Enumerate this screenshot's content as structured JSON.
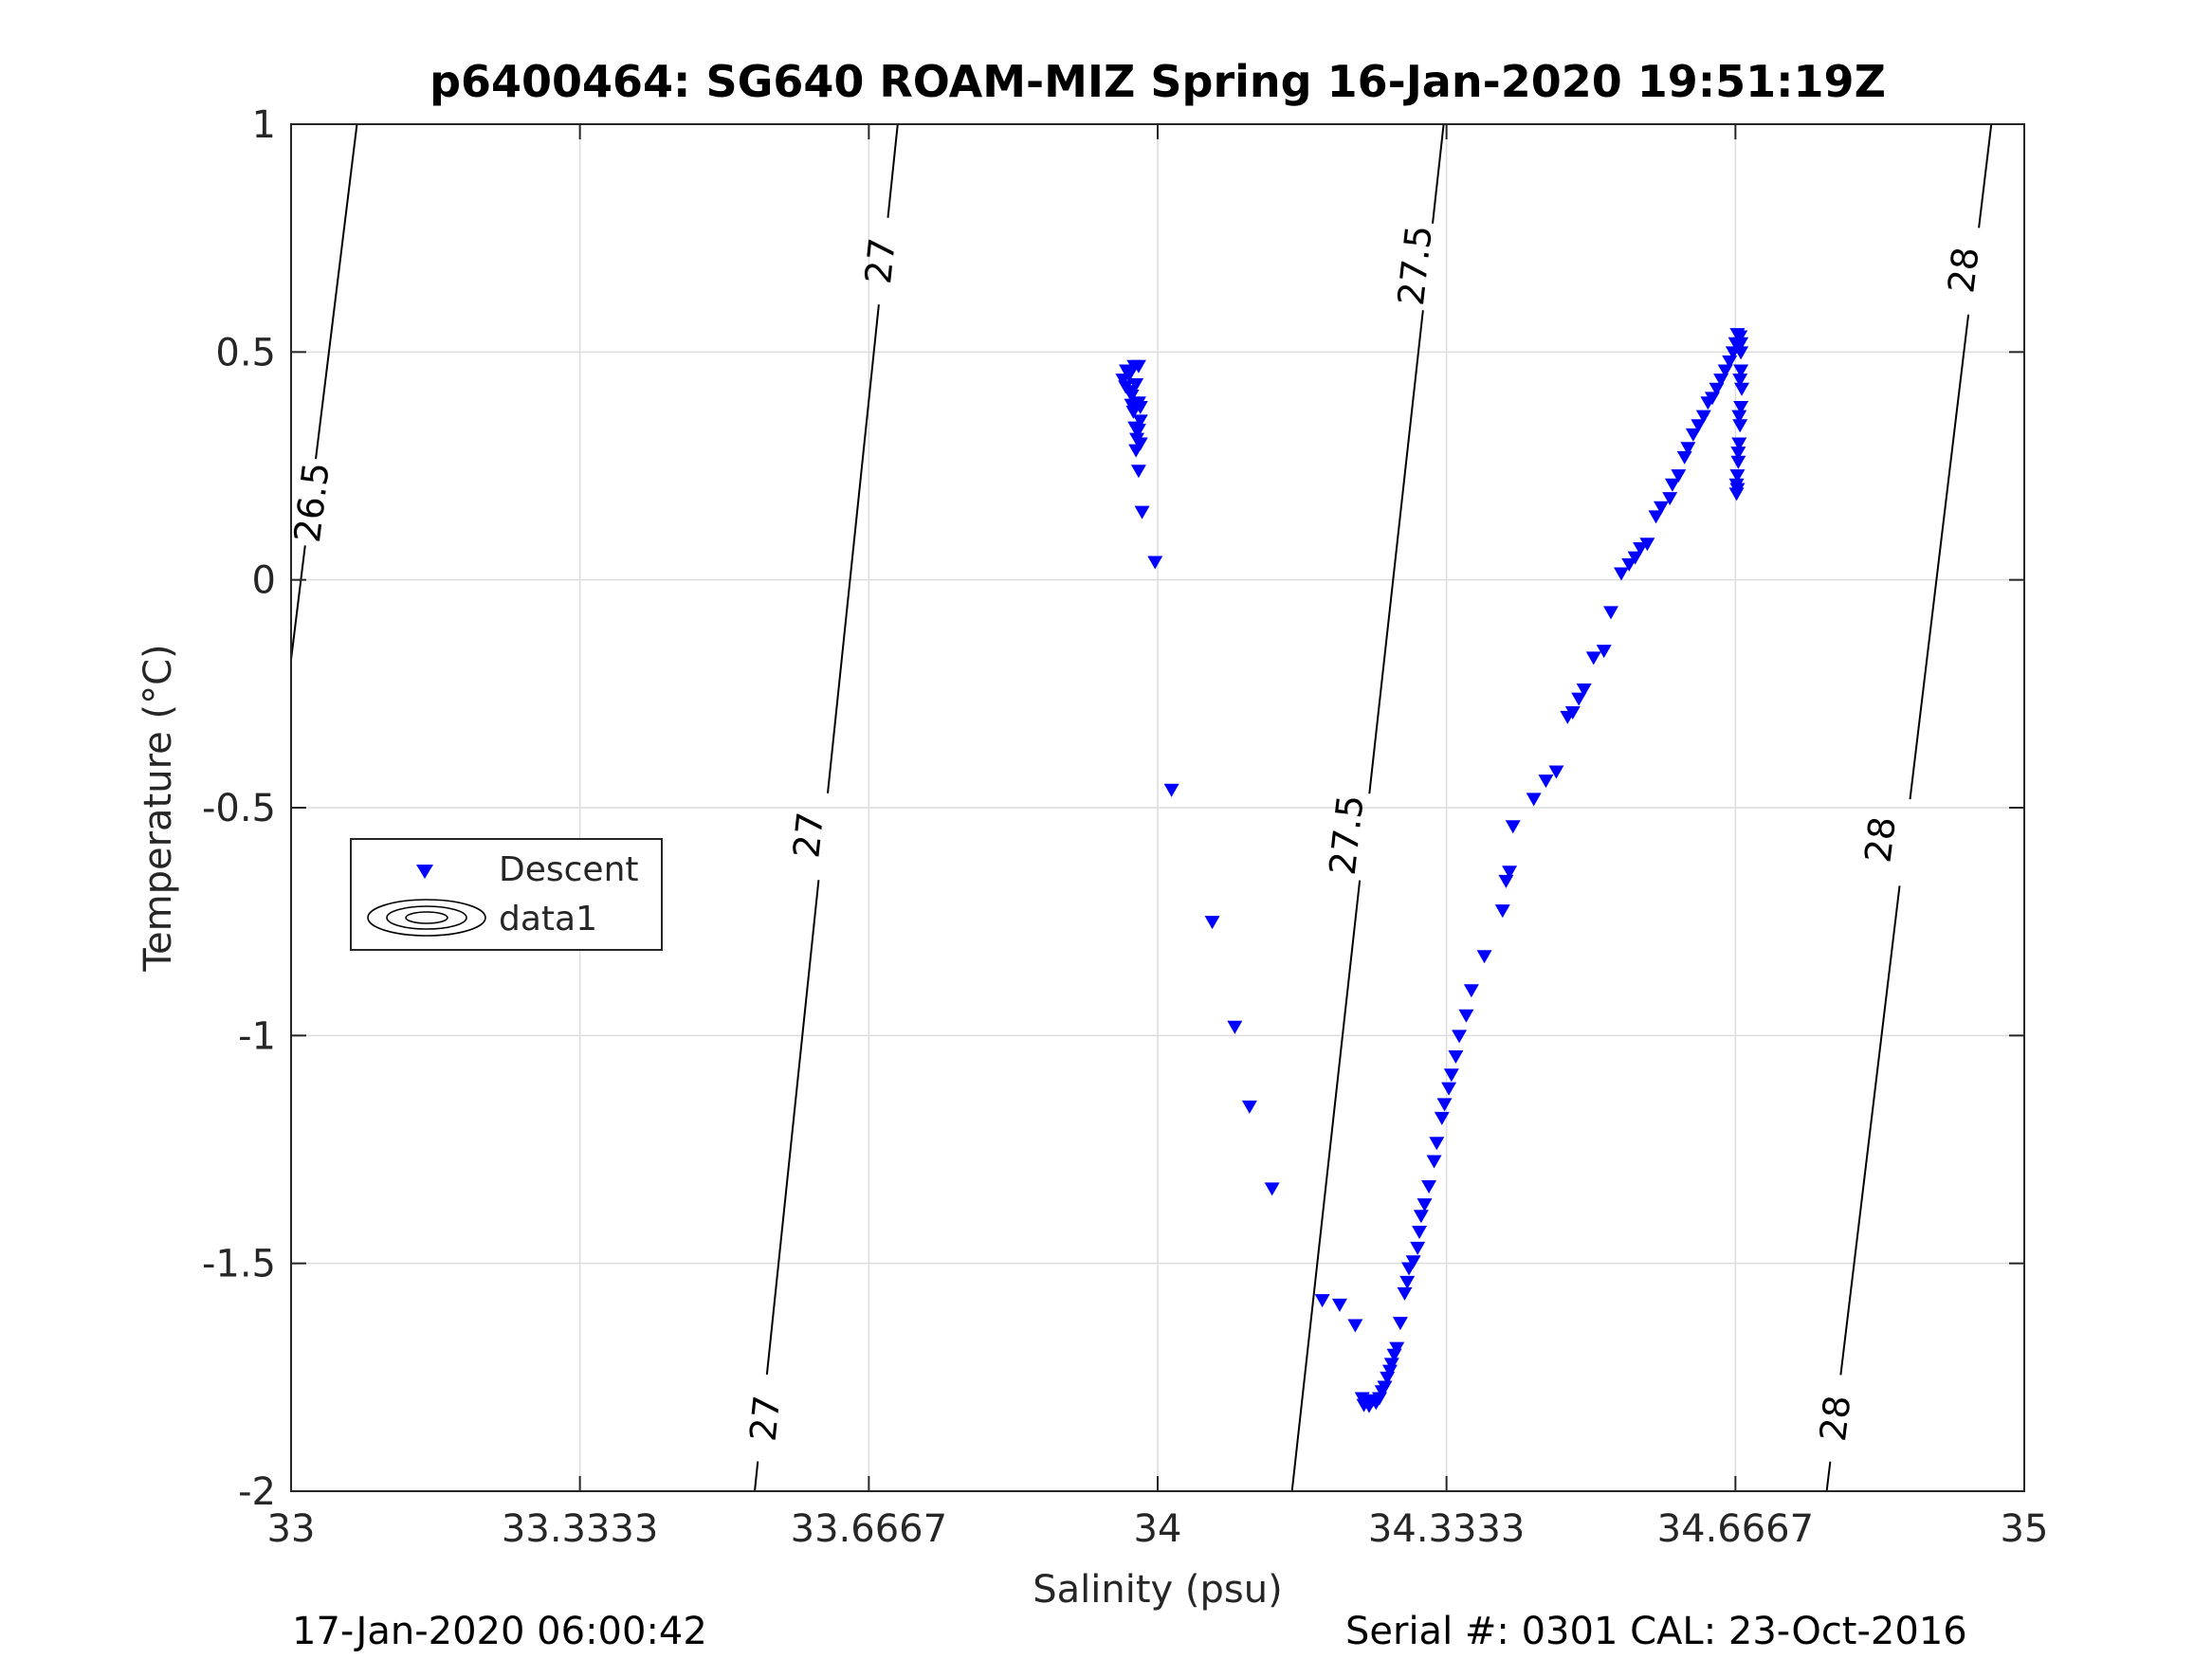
{
  "chart_data": {
    "type": "scatter",
    "title": "p6400464: SG640 ROAM-MIZ Spring 16-Jan-2020 19:51:19Z",
    "xlabel": "Salinity (psu)",
    "ylabel": "Temperature (°C)",
    "xlim": [
      33,
      35
    ],
    "ylim": [
      -2,
      1
    ],
    "x_ticks": [
      "33",
      "33.3333",
      "33.6667",
      "34",
      "34.3333",
      "34.6667",
      "35"
    ],
    "x_tick_values": [
      33,
      33.3333,
      33.6667,
      34,
      34.3333,
      34.6667,
      35
    ],
    "y_ticks": [
      "-2",
      "-1.5",
      "-1",
      "-0.5",
      "0",
      "0.5",
      "1"
    ],
    "y_tick_values": [
      -2,
      -1.5,
      -1,
      -0.5,
      0,
      0.5,
      1
    ],
    "grid": true,
    "legend_position": "middle-left",
    "legend": [
      {
        "name": "Descent",
        "marker": "down-triangle",
        "color": "#0000ff"
      },
      {
        "name": "data1",
        "marker": "contour",
        "color": "#000000"
      }
    ],
    "density_contours": [
      {
        "label": "26.5",
        "points": [
          [
            33.076,
            1.0
          ],
          [
            33.0,
            -0.175
          ]
        ],
        "label_at": [
          33.024,
          0.17
        ]
      },
      {
        "label": "27",
        "points": [
          [
            33.7,
            1.0
          ],
          [
            33.535,
            -2.0
          ]
        ],
        "label_at": [
          33.68,
          0.7
        ],
        "label_positions": [
          [
            33.68,
            0.7
          ],
          [
            33.597,
            -0.56
          ],
          [
            33.547,
            -1.84
          ]
        ]
      },
      {
        "label": "27.5",
        "points": [
          [
            34.33,
            1.0
          ],
          [
            34.155,
            -2.0
          ]
        ],
        "label_at": [
          34.297,
          0.69
        ],
        "label_positions": [
          [
            34.297,
            0.69
          ],
          [
            34.218,
            -0.56
          ],
          [
            34.218,
            -0.56
          ]
        ]
      },
      {
        "label": "28",
        "points": [
          [
            34.962,
            1.0
          ],
          [
            34.772,
            -2.0
          ]
        ],
        "label_at": [
          34.93,
          0.68
        ],
        "label_positions": [
          [
            34.93,
            0.68
          ],
          [
            34.834,
            -0.57
          ],
          [
            34.782,
            -1.84
          ]
        ]
      }
    ],
    "series": [
      {
        "name": "Descent",
        "marker": "down-triangle",
        "color": "#0000ff",
        "points": [
          [
            33.96,
            0.44
          ],
          [
            33.963,
            0.425
          ],
          [
            33.968,
            0.415
          ],
          [
            33.97,
            0.405
          ],
          [
            33.97,
            0.385
          ],
          [
            33.972,
            0.37
          ],
          [
            33.974,
            0.335
          ],
          [
            33.976,
            0.31
          ],
          [
            33.978,
            0.33
          ],
          [
            33.98,
            0.35
          ],
          [
            33.98,
            0.38
          ],
          [
            33.978,
            0.39
          ],
          [
            33.975,
            0.43
          ],
          [
            33.973,
            0.47
          ],
          [
            33.978,
            0.47
          ],
          [
            33.967,
            0.45
          ],
          [
            33.964,
            0.46
          ],
          [
            33.975,
            0.285
          ],
          [
            33.98,
            0.3
          ],
          [
            33.978,
            0.24
          ],
          [
            33.982,
            0.15
          ],
          [
            33.997,
            0.04
          ],
          [
            34.016,
            -0.46
          ],
          [
            34.063,
            -0.75
          ],
          [
            34.089,
            -0.98
          ],
          [
            34.106,
            -1.155
          ],
          [
            34.132,
            -1.335
          ],
          [
            34.19,
            -1.58
          ],
          [
            34.21,
            -1.59
          ],
          [
            34.228,
            -1.635
          ],
          [
            34.236,
            -1.795
          ],
          [
            34.238,
            -1.81
          ],
          [
            34.24,
            -1.8
          ],
          [
            34.244,
            -1.812
          ],
          [
            34.248,
            -1.8
          ],
          [
            34.252,
            -1.805
          ],
          [
            34.256,
            -1.795
          ],
          [
            34.259,
            -1.78
          ],
          [
            34.262,
            -1.77
          ],
          [
            34.265,
            -1.75
          ],
          [
            34.268,
            -1.735
          ],
          [
            34.27,
            -1.72
          ],
          [
            34.273,
            -1.7
          ],
          [
            34.276,
            -1.685
          ],
          [
            34.28,
            -1.63
          ],
          [
            34.285,
            -1.565
          ],
          [
            34.288,
            -1.54
          ],
          [
            34.29,
            -1.51
          ],
          [
            34.295,
            -1.495
          ],
          [
            34.3,
            -1.465
          ],
          [
            34.302,
            -1.43
          ],
          [
            34.304,
            -1.395
          ],
          [
            34.308,
            -1.37
          ],
          [
            34.313,
            -1.33
          ],
          [
            34.319,
            -1.275
          ],
          [
            34.322,
            -1.235
          ],
          [
            34.328,
            -1.18
          ],
          [
            34.331,
            -1.15
          ],
          [
            34.336,
            -1.115
          ],
          [
            34.339,
            -1.085
          ],
          [
            34.344,
            -1.045
          ],
          [
            34.348,
            -1.0
          ],
          [
            34.356,
            -0.955
          ],
          [
            34.362,
            -0.9
          ],
          [
            34.377,
            -0.825
          ],
          [
            34.398,
            -0.725
          ],
          [
            34.402,
            -0.66
          ],
          [
            34.406,
            -0.64
          ],
          [
            34.41,
            -0.54
          ],
          [
            34.434,
            -0.48
          ],
          [
            34.448,
            -0.44
          ],
          [
            34.46,
            -0.42
          ],
          [
            34.473,
            -0.3
          ],
          [
            34.479,
            -0.29
          ],
          [
            34.486,
            -0.26
          ],
          [
            34.492,
            -0.24
          ],
          [
            34.503,
            -0.17
          ],
          [
            34.515,
            -0.155
          ],
          [
            34.523,
            -0.07
          ],
          [
            34.535,
            0.015
          ],
          [
            34.544,
            0.035
          ],
          [
            34.551,
            0.05
          ],
          [
            34.557,
            0.07
          ],
          [
            34.565,
            0.08
          ],
          [
            34.575,
            0.14
          ],
          [
            34.581,
            0.16
          ],
          [
            34.591,
            0.18
          ],
          [
            34.594,
            0.21
          ],
          [
            34.601,
            0.23
          ],
          [
            34.608,
            0.27
          ],
          [
            34.612,
            0.29
          ],
          [
            34.618,
            0.32
          ],
          [
            34.624,
            0.34
          ],
          [
            34.63,
            0.36
          ],
          [
            34.635,
            0.39
          ],
          [
            34.64,
            0.4
          ],
          [
            34.645,
            0.42
          ],
          [
            34.65,
            0.44
          ],
          [
            34.655,
            0.46
          ],
          [
            34.66,
            0.48
          ],
          [
            34.664,
            0.5
          ],
          [
            34.667,
            0.52
          ],
          [
            34.669,
            0.54
          ],
          [
            34.672,
            0.535
          ],
          [
            34.673,
            0.5
          ],
          [
            34.673,
            0.46
          ],
          [
            34.674,
            0.42
          ],
          [
            34.673,
            0.38
          ],
          [
            34.672,
            0.34
          ],
          [
            34.671,
            0.3
          ],
          [
            34.67,
            0.26
          ],
          [
            34.669,
            0.23
          ],
          [
            34.668,
            0.21
          ],
          [
            34.668,
            0.19
          ],
          [
            34.669,
            0.2
          ],
          [
            34.67,
            0.28
          ],
          [
            34.671,
            0.36
          ],
          [
            34.672,
            0.44
          ],
          [
            34.673,
            0.52
          ]
        ]
      }
    ]
  },
  "footer": {
    "left": "17-Jan-2020 06:00:42",
    "right": "Serial #: 0301  CAL: 23-Oct-2016"
  },
  "colors": {
    "marker": "#0000ff",
    "contour": "#000000",
    "grid": "#dcdcdc",
    "axis": "#262626"
  }
}
